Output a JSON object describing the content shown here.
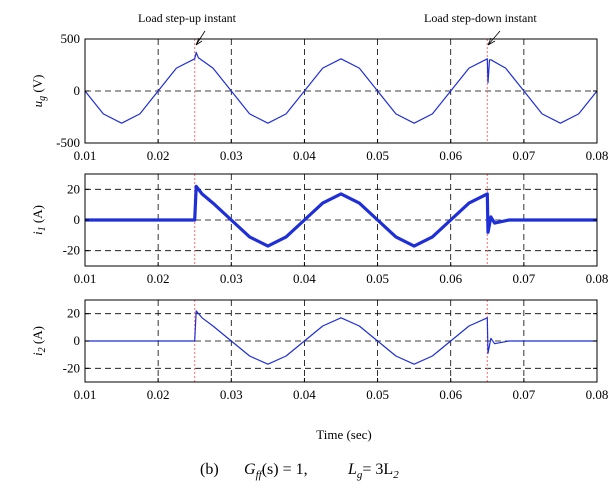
{
  "colors": {
    "signal": "#1f2fd8",
    "event_marker": "#ff6a6a",
    "axes": "#000000"
  },
  "annotations": {
    "step_up": "Load step-up instant",
    "step_down": "Load step-down instant"
  },
  "xlabel": "Time (sec)",
  "caption": {
    "label": "(b)",
    "formula_1": "G",
    "formula_1_sub": "ff",
    "formula_1_rest": "(s) = 1,",
    "formula_2": "L",
    "formula_2_sub": "g",
    "formula_2_rest": "= 3L",
    "formula_2_sub2": "2"
  },
  "chart_data": [
    {
      "type": "line",
      "ylabel": "u_g (V)",
      "ylabel_main": "u",
      "ylabel_sub": "g",
      "ylabel_unit": "(V)",
      "ylim": [
        -500,
        500
      ],
      "yticks": [
        "500",
        "0",
        "-500"
      ],
      "yticks_values": [
        500,
        0,
        -500
      ],
      "xlim": [
        0.01,
        0.08
      ],
      "xticks": [
        "0.01",
        "0.02",
        "0.03",
        "0.04",
        "0.05",
        "0.06",
        "0.07",
        "0.08"
      ],
      "grid": true,
      "events_x": [
        0.025,
        0.065
      ],
      "series": [
        {
          "x": [
            0.01,
            0.0125,
            0.015,
            0.0175,
            0.02,
            0.0225,
            0.025,
            0.0252,
            0.0255,
            0.0275,
            0.03,
            0.0325,
            0.035,
            0.0375,
            0.04,
            0.0425,
            0.045,
            0.0475,
            0.05,
            0.0525,
            0.055,
            0.0575,
            0.06,
            0.0625,
            0.065,
            0.0651,
            0.0653,
            0.0655,
            0.0675,
            0.07,
            0.0725,
            0.075,
            0.0775,
            0.08
          ],
          "values": [
            0,
            -220,
            -310,
            -220,
            0,
            220,
            310,
            370,
            320,
            220,
            0,
            -220,
            -310,
            -220,
            0,
            220,
            310,
            220,
            0,
            -220,
            -310,
            -220,
            0,
            220,
            310,
            80,
            300,
            300,
            220,
            0,
            -220,
            -310,
            -220,
            0
          ]
        }
      ]
    },
    {
      "type": "line",
      "ylabel": "i_1 (A)",
      "ylabel_main": "i",
      "ylabel_sub": "1",
      "ylabel_unit": "(A)",
      "ylim": [
        -30,
        30
      ],
      "yticks": [
        "20",
        "0",
        "-20"
      ],
      "yticks_values": [
        20,
        0,
        -20
      ],
      "xlim": [
        0.01,
        0.08
      ],
      "xticks": [
        "0.01",
        "0.02",
        "0.03",
        "0.04",
        "0.05",
        "0.06",
        "0.07",
        "0.08"
      ],
      "grid": true,
      "events_x": [
        0.025,
        0.065
      ],
      "series": [
        {
          "x": [
            0.01,
            0.015,
            0.02,
            0.025,
            0.0252,
            0.026,
            0.0275,
            0.03,
            0.0325,
            0.035,
            0.0375,
            0.04,
            0.0425,
            0.045,
            0.0475,
            0.05,
            0.0525,
            0.055,
            0.0575,
            0.06,
            0.0625,
            0.065,
            0.0651,
            0.0655,
            0.066,
            0.068,
            0.07,
            0.075,
            0.08
          ],
          "values": [
            0,
            0,
            0,
            0,
            22,
            17,
            11,
            0,
            -11,
            -17,
            -11,
            0,
            11,
            17,
            11,
            0,
            -11,
            -17,
            -11,
            0,
            11,
            17,
            -8,
            2,
            -2,
            0,
            0,
            0,
            0
          ]
        }
      ]
    },
    {
      "type": "line",
      "ylabel": "i_2 (A)",
      "ylabel_main": "i",
      "ylabel_sub": "2",
      "ylabel_unit": "(A)",
      "ylim": [
        -30,
        30
      ],
      "yticks": [
        "20",
        "0",
        "-20"
      ],
      "yticks_values": [
        20,
        0,
        -20
      ],
      "xlim": [
        0.01,
        0.08
      ],
      "xticks": [
        "0.01",
        "0.02",
        "0.03",
        "0.04",
        "0.05",
        "0.06",
        "0.07",
        "0.08"
      ],
      "grid": true,
      "events_x": [
        0.025,
        0.065
      ],
      "series": [
        {
          "x": [
            0.01,
            0.015,
            0.02,
            0.025,
            0.0252,
            0.026,
            0.0275,
            0.03,
            0.0325,
            0.035,
            0.0375,
            0.04,
            0.0425,
            0.045,
            0.0475,
            0.05,
            0.0525,
            0.055,
            0.0575,
            0.06,
            0.0625,
            0.065,
            0.0651,
            0.0655,
            0.066,
            0.068,
            0.07,
            0.075,
            0.08
          ],
          "values": [
            0,
            0,
            0,
            0,
            22,
            17,
            11,
            0,
            -11,
            -17,
            -11,
            0,
            11,
            17,
            11,
            0,
            -11,
            -17,
            -11,
            0,
            11,
            17,
            -9,
            2,
            -2,
            0,
            0,
            0,
            0
          ]
        }
      ]
    }
  ]
}
